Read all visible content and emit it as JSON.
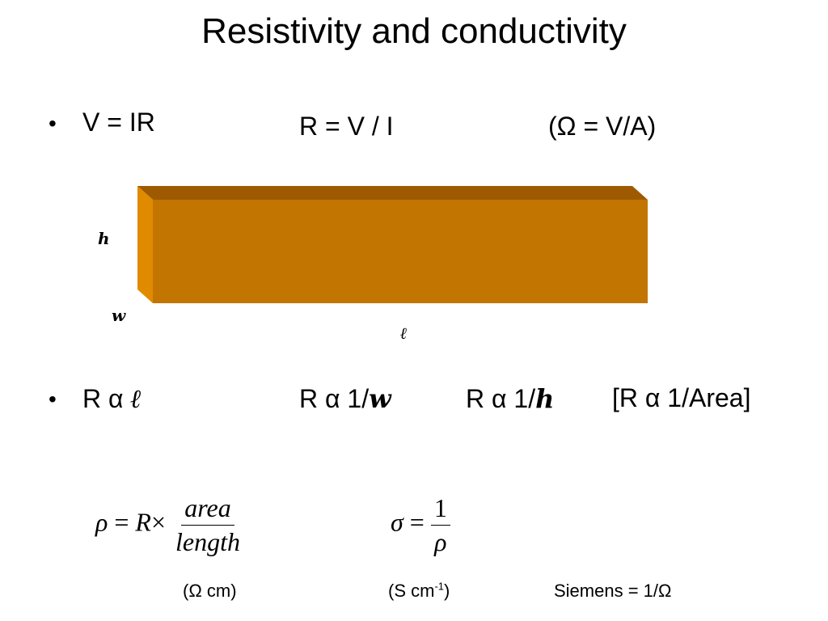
{
  "title": "Resistivity and conductivity",
  "row1": {
    "bullet": "•",
    "ohms_law": "V = IR",
    "resistance": "R = V / I",
    "ohm_unit": "(Ω = V/A)"
  },
  "figure": {
    "bar_color": "#C27500",
    "label_height": "h",
    "label_width": "w",
    "label_length": "ℓ"
  },
  "row2": {
    "bullet": "•",
    "r_length_prefix": "R α ",
    "r_length_var": "ℓ",
    "r_width_prefix": "R α 1/",
    "r_width_var": "w",
    "r_height_prefix": "R α 1/",
    "r_height_var": "h",
    "r_area": "[R α 1/Area]"
  },
  "equations": {
    "rho": {
      "lhs": "ρ",
      "equals": "=",
      "r": "R",
      "times": "×",
      "numerator": "area",
      "denominator": "length"
    },
    "sigma": {
      "lhs": "σ",
      "equals": "=",
      "numerator": "1",
      "denominator": "ρ"
    }
  },
  "units": {
    "rho_unit": "(Ω cm)",
    "sigma_unit_prefix": "(S cm",
    "sigma_unit_exp": "-1",
    "sigma_unit_suffix": ")",
    "siemens": "Siemens = 1/Ω"
  }
}
